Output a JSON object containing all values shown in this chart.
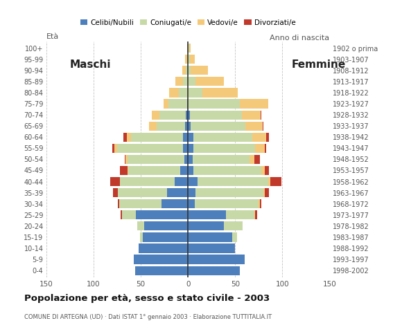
{
  "age_groups": [
    "0-4",
    "5-9",
    "10-14",
    "15-19",
    "20-24",
    "25-29",
    "30-34",
    "35-39",
    "40-44",
    "45-49",
    "50-54",
    "55-59",
    "60-64",
    "65-69",
    "70-74",
    "75-79",
    "80-84",
    "85-89",
    "90-94",
    "95-99",
    "100+"
  ],
  "birth_years": [
    "1998-2002",
    "1993-1997",
    "1988-1992",
    "1983-1987",
    "1978-1982",
    "1973-1977",
    "1968-1972",
    "1963-1967",
    "1958-1962",
    "1953-1957",
    "1948-1952",
    "1943-1947",
    "1938-1942",
    "1933-1937",
    "1928-1932",
    "1923-1927",
    "1918-1922",
    "1913-1917",
    "1908-1912",
    "1903-1907",
    "1902 o prima"
  ],
  "colors": {
    "celibe": "#4d7fbc",
    "coniugato": "#c8d9a8",
    "vedovo": "#f5c97a",
    "divorziato": "#c0392b"
  },
  "males": {
    "celibe": [
      56,
      57,
      52,
      48,
      46,
      55,
      28,
      22,
      14,
      8,
      4,
      5,
      5,
      3,
      2,
      1,
      0,
      0,
      0,
      0,
      0
    ],
    "coniugato": [
      0,
      0,
      0,
      3,
      8,
      15,
      45,
      52,
      58,
      55,
      60,
      70,
      55,
      30,
      28,
      20,
      10,
      5,
      2,
      1,
      0
    ],
    "vedovo": [
      0,
      0,
      0,
      0,
      0,
      0,
      0,
      0,
      0,
      1,
      2,
      3,
      5,
      8,
      8,
      5,
      10,
      8,
      4,
      2,
      1
    ],
    "divorziato": [
      0,
      0,
      0,
      0,
      0,
      1,
      1,
      5,
      10,
      8,
      1,
      2,
      3,
      0,
      0,
      0,
      0,
      0,
      0,
      0,
      0
    ]
  },
  "females": {
    "celibe": [
      55,
      60,
      50,
      47,
      38,
      40,
      7,
      8,
      10,
      6,
      5,
      6,
      6,
      3,
      2,
      0,
      0,
      0,
      0,
      0,
      0
    ],
    "coniugato": [
      0,
      0,
      0,
      5,
      20,
      30,
      68,
      72,
      75,
      72,
      60,
      65,
      62,
      58,
      55,
      55,
      15,
      8,
      3,
      2,
      1
    ],
    "vedovo": [
      0,
      0,
      0,
      0,
      0,
      1,
      1,
      1,
      2,
      3,
      5,
      10,
      15,
      18,
      20,
      30,
      38,
      30,
      18,
      5,
      2
    ],
    "divorziato": [
      0,
      0,
      0,
      0,
      0,
      2,
      2,
      5,
      12,
      5,
      6,
      2,
      3,
      1,
      1,
      0,
      0,
      0,
      0,
      0,
      0
    ]
  },
  "title": "Popolazione per età, sesso e stato civile - 2003",
  "subtitle": "COMUNE DI ARTEGNA (UD) · Dati ISTAT 1° gennaio 2003 · Elaborazione TUTTITALIA.IT",
  "label_maschi": "Maschi",
  "label_femmine": "Femmine",
  "ylabel_left": "Età",
  "ylabel_right": "Anno di nascita",
  "xlim": 150,
  "background_color": "#ffffff",
  "grid_color": "#aaaaaa"
}
